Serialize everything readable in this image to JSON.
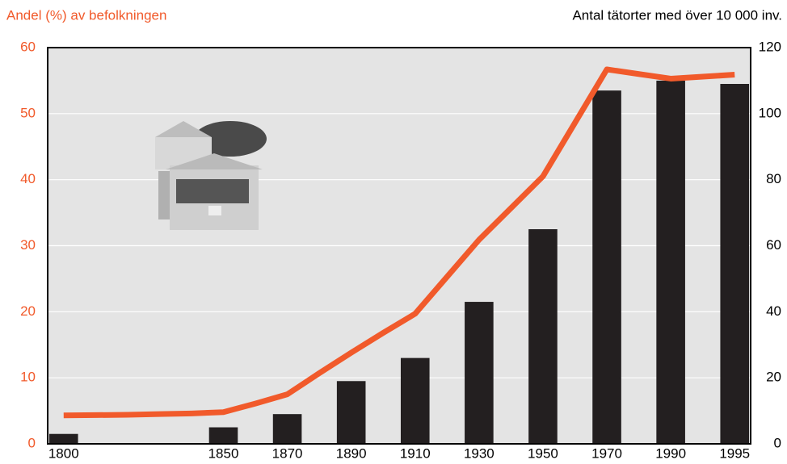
{
  "chart_data": {
    "type": "bar-line",
    "y_label": "Andel (%) av befolkningen",
    "y2_label": "Antal tätorter med över 10 000 inv.",
    "categories": [
      "1800",
      null,
      null,
      null,
      null,
      "1850",
      null,
      "1870",
      null,
      "1890",
      null,
      "1910",
      null,
      "1930",
      null,
      "1950",
      null,
      "1970",
      null,
      "1990",
      null,
      "1995"
    ],
    "series": [
      {
        "type": "bar",
        "axis": "y2",
        "color": "#231f20",
        "values": [
          3,
          null,
          null,
          null,
          null,
          5,
          null,
          9,
          null,
          19,
          null,
          26,
          null,
          43,
          null,
          65,
          null,
          107,
          null,
          110,
          null,
          109
        ]
      },
      {
        "type": "line",
        "axis": "y",
        "color": "#f15a2b",
        "values": [
          4.3,
          4.35,
          4.4,
          4.5,
          4.6,
          4.8,
          6.1,
          7.5,
          10.7,
          13.8,
          16.8,
          19.7,
          25.3,
          30.9,
          35.7,
          40.5,
          48.6,
          56.7,
          56.0,
          55.3,
          55.6,
          55.9
        ]
      }
    ],
    "ylim": [
      0,
      60
    ],
    "yticks": [
      0,
      10,
      20,
      30,
      40,
      50,
      60
    ],
    "y2lim": [
      0,
      120
    ],
    "y2ticks": [
      0,
      20,
      40,
      60,
      80,
      100,
      120
    ],
    "y_color": "#f15a2b",
    "grid": true
  }
}
